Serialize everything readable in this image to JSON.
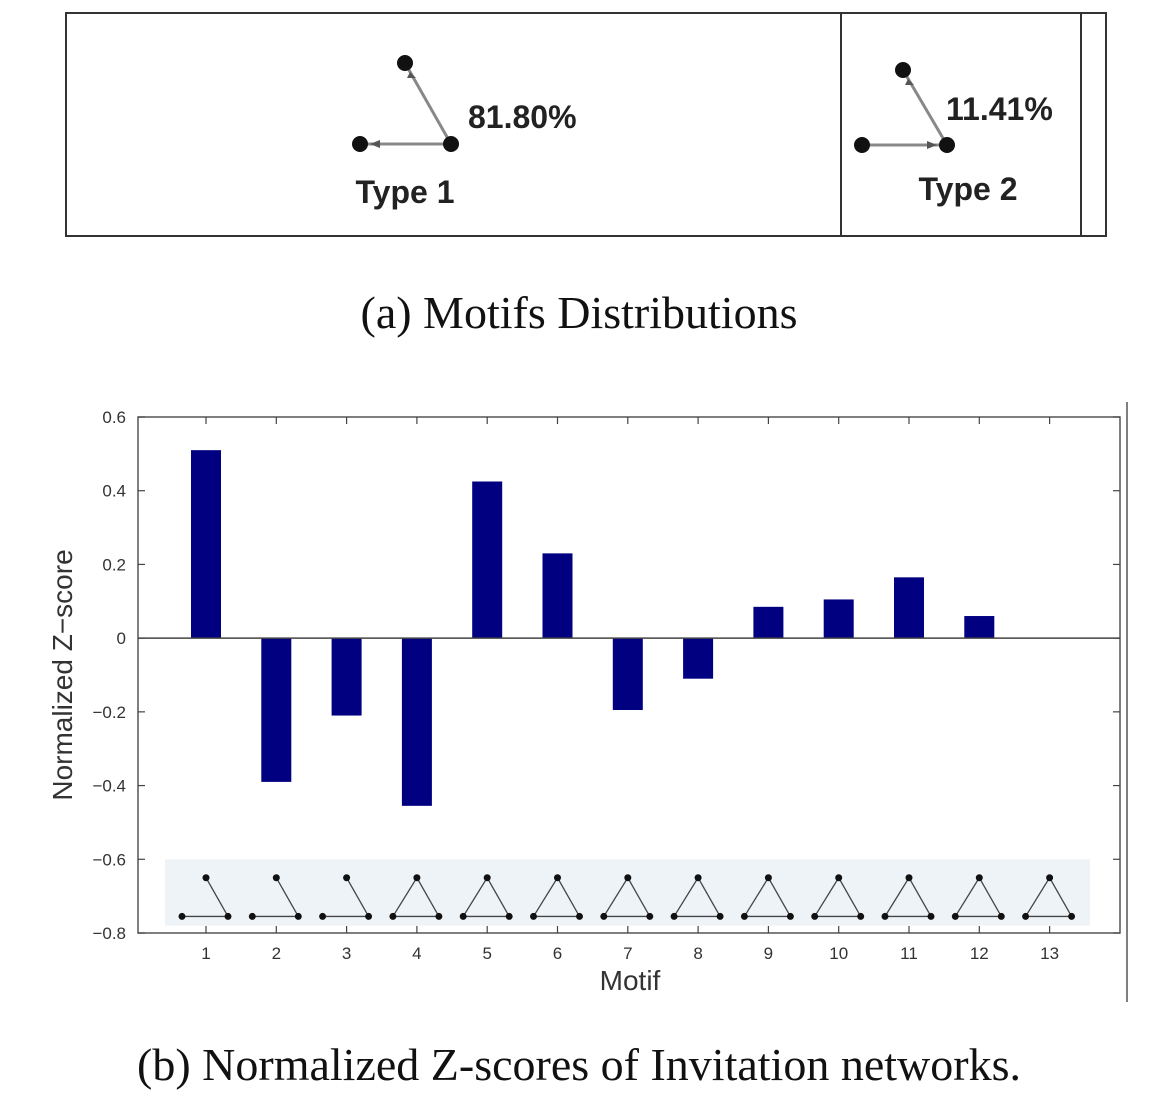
{
  "panel_a": {
    "caption": "(a) Motifs Distributions",
    "motifs": [
      {
        "percent": "81.80%",
        "label": "Type 1"
      },
      {
        "percent": "11.41%",
        "label": "Type 2"
      }
    ]
  },
  "panel_b": {
    "caption": "(b) Normalized Z-scores of Invitation networks."
  },
  "colors": {
    "bar": "#000080",
    "axis": "#444444",
    "motif_strip": "#eef3f8"
  },
  "chart_data": {
    "type": "bar",
    "categories": [
      "1",
      "2",
      "3",
      "4",
      "5",
      "6",
      "7",
      "8",
      "9",
      "10",
      "11",
      "12",
      "13"
    ],
    "values": [
      0.51,
      -0.39,
      -0.21,
      -0.455,
      0.425,
      0.23,
      -0.195,
      -0.11,
      0.085,
      0.105,
      0.165,
      0.06,
      0
    ],
    "xlabel": "Motif",
    "ylabel": "Normalized Z−score",
    "ylim": [
      -0.8,
      0.6
    ],
    "yticks": [
      -0.8,
      -0.6,
      -0.4,
      -0.2,
      0,
      0.2,
      0.4,
      0.6
    ],
    "ytick_labels": [
      "−0.8",
      "−0.6",
      "−0.4",
      "−0.2",
      "0",
      "0.2",
      "0.4",
      "0.6"
    ],
    "grid": false
  }
}
